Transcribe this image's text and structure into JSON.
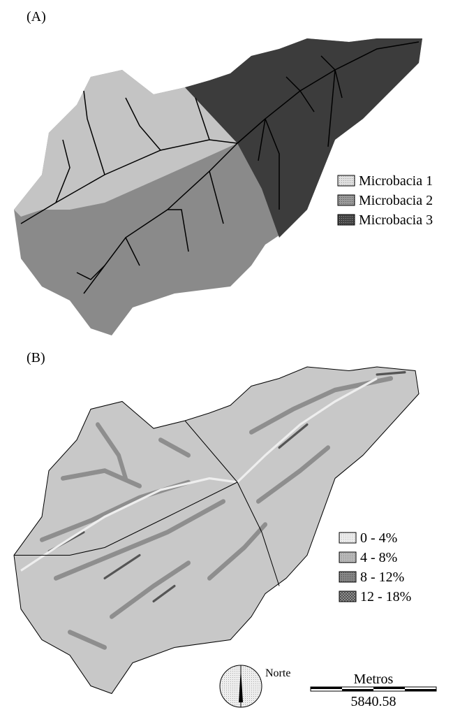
{
  "labels": {
    "panel_a": "(A)",
    "panel_b": "(B)"
  },
  "legend_a": [
    "Microbacia 1",
    "Microbacia 2",
    "Microbacia 3"
  ],
  "legend_b": [
    "0 - 4%",
    "4 - 8%",
    "8 - 12%",
    "12 - 18%"
  ],
  "north": "Norte",
  "scale": {
    "unit": "Metros",
    "length": "5840.58"
  }
}
